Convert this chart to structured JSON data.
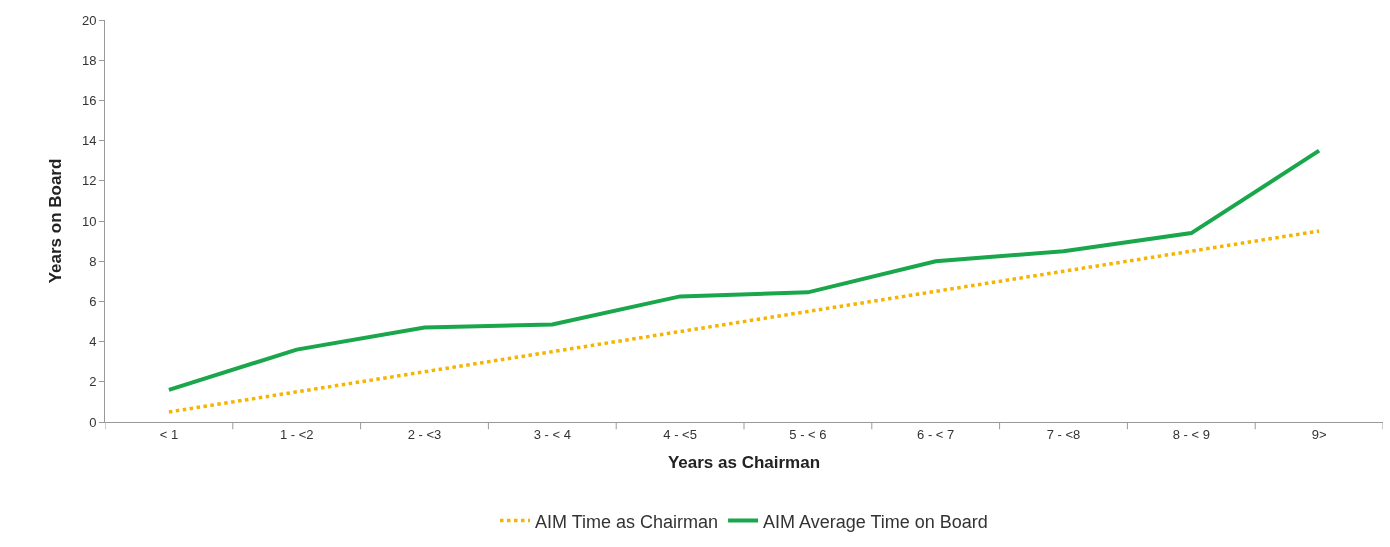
{
  "chart_data": {
    "type": "line",
    "xlabel": "Years as Chairman",
    "ylabel": "Years on Board",
    "categories": [
      "< 1",
      "1 - <2",
      "2 - <3",
      "3 - < 4",
      "4 - <5",
      "5 - < 6",
      "6 - < 7",
      "7 - <8",
      "8 - < 9",
      "9>"
    ],
    "series": [
      {
        "name": "AIM Time as Chairman",
        "color": "#f5b400",
        "line_style": "dotted",
        "values": [
          0.5,
          1.5,
          2.5,
          3.5,
          4.5,
          5.5,
          6.5,
          7.5,
          8.5,
          9.5
        ]
      },
      {
        "name": "AIM Average Time on Board",
        "color": "#1aa64b",
        "line_style": "solid",
        "values": [
          1.6,
          3.6,
          4.7,
          4.85,
          6.25,
          6.45,
          8.0,
          8.5,
          9.4,
          13.5
        ]
      }
    ],
    "ylim": [
      0,
      20
    ],
    "yticks": [
      0,
      2,
      4,
      6,
      8,
      10,
      12,
      14,
      16,
      18,
      20
    ],
    "legend": "bottom",
    "marker": "none"
  }
}
